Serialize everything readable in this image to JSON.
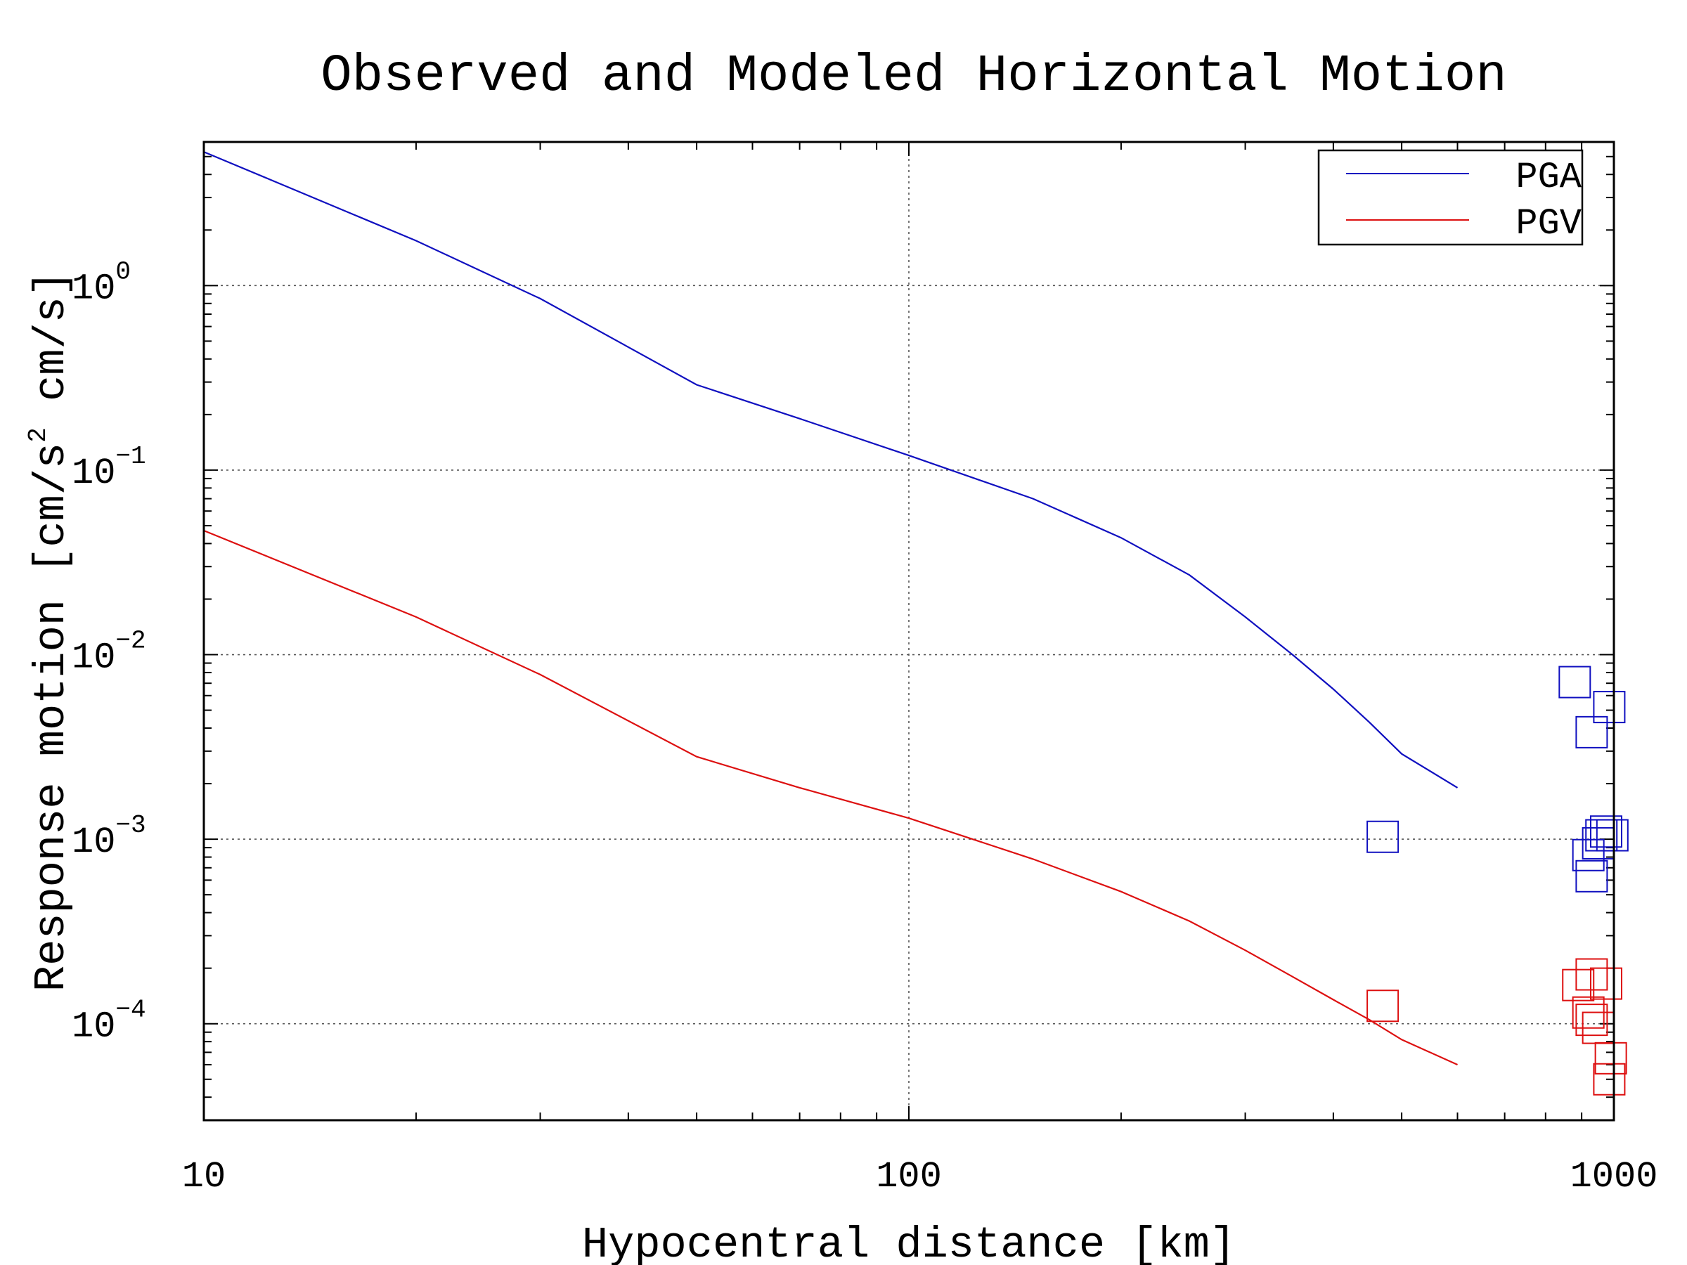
{
  "chart_data": {
    "type": "line",
    "title": "Observed and Modeled Horizontal Motion",
    "xlabel": "Hypocentral distance [km]",
    "ylabel": {
      "main": "Response motion  [cm/s",
      "superscript": "2",
      "tail": "  cm/s]"
    },
    "x_scale": "log",
    "y_scale": "log",
    "xlim": [
      10,
      1000
    ],
    "ylim": [
      3e-05,
      6
    ],
    "x_ticks": [
      {
        "value": 10,
        "label": "10"
      },
      {
        "value": 100,
        "label": "100"
      },
      {
        "value": 1000,
        "label": "1000"
      }
    ],
    "y_ticks": [
      {
        "value": 1,
        "base": "10",
        "exp": "0"
      },
      {
        "value": 0.1,
        "base": "10",
        "exp": "−1"
      },
      {
        "value": 0.01,
        "base": "10",
        "exp": "−2"
      },
      {
        "value": 0.001,
        "base": "10",
        "exp": "−3"
      },
      {
        "value": 0.0001,
        "base": "10",
        "exp": "−4"
      }
    ],
    "grid": true,
    "legend_position": "top-right",
    "series": [
      {
        "name": "PGA",
        "color": "#1010c0",
        "model": [
          [
            10,
            5.3
          ],
          [
            20,
            1.75
          ],
          [
            30,
            0.85
          ],
          [
            50,
            0.29
          ],
          [
            70,
            0.19
          ],
          [
            100,
            0.12
          ],
          [
            150,
            0.07
          ],
          [
            200,
            0.043
          ],
          [
            250,
            0.027
          ],
          [
            300,
            0.016
          ],
          [
            350,
            0.01
          ],
          [
            400,
            0.0065
          ],
          [
            450,
            0.0043
          ],
          [
            500,
            0.0029
          ],
          [
            600,
            0.0019
          ]
        ],
        "observed": [
          [
            470,
            0.00103
          ],
          [
            880,
            0.0071
          ],
          [
            930,
            0.0038
          ],
          [
            985,
            0.0052
          ],
          [
            920,
            0.00082
          ],
          [
            930,
            0.00063
          ],
          [
            950,
            0.00095
          ],
          [
            960,
            0.00105
          ],
          [
            975,
            0.0011
          ],
          [
            995,
            0.00105
          ]
        ]
      },
      {
        "name": "PGV",
        "color": "#dd1010",
        "model": [
          [
            10,
            0.047
          ],
          [
            20,
            0.016
          ],
          [
            30,
            0.0078
          ],
          [
            50,
            0.0028
          ],
          [
            70,
            0.0019
          ],
          [
            100,
            0.0013
          ],
          [
            150,
            0.00078
          ],
          [
            200,
            0.00052
          ],
          [
            250,
            0.00036
          ],
          [
            300,
            0.00025
          ],
          [
            350,
            0.00018
          ],
          [
            400,
            0.000135
          ],
          [
            450,
            0.000105
          ],
          [
            500,
            8.2e-05
          ],
          [
            600,
            6e-05
          ]
        ],
        "observed": [
          [
            470,
            0.000125
          ],
          [
            890,
            0.000162
          ],
          [
            930,
            0.000185
          ],
          [
            975,
            0.000165
          ],
          [
            920,
            0.000115
          ],
          [
            930,
            0.000105
          ],
          [
            950,
            9.5e-05
          ],
          [
            990,
            6.5e-05
          ],
          [
            985,
            5e-05
          ]
        ]
      }
    ]
  }
}
